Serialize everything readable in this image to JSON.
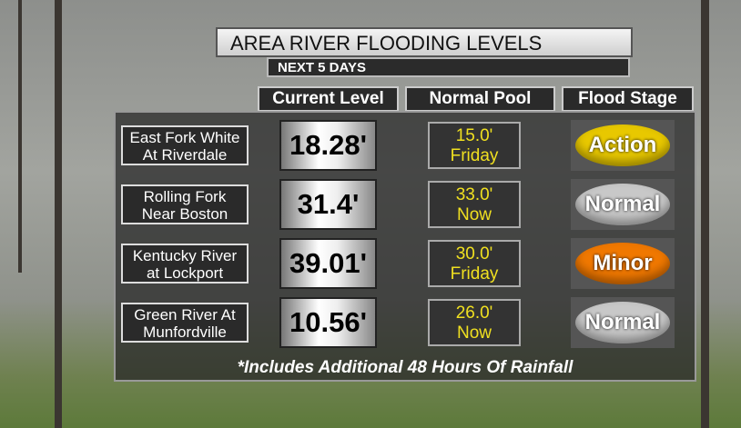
{
  "header": {
    "title": "AREA RIVER FLOODING LEVELS",
    "subtitle": "NEXT 5 DAYS"
  },
  "columns": [
    "Current Level",
    "Normal Pool",
    "Flood Stage"
  ],
  "rows": [
    {
      "station": [
        "East Fork White",
        "At Riverdale"
      ],
      "current": "18.28'",
      "normal_pool": [
        "15.0'",
        "Friday"
      ],
      "flood_stage": "Action",
      "stage_color": "#e8c800"
    },
    {
      "station": [
        "Rolling Fork",
        "Near Boston"
      ],
      "current": "31.4'",
      "normal_pool": [
        "33.0'",
        "Now"
      ],
      "flood_stage": "Normal",
      "stage_color": "#c8c8c8"
    },
    {
      "station": [
        "Kentucky River",
        "at Lockport"
      ],
      "current": "39.01'",
      "normal_pool": [
        "30.0'",
        "Friday"
      ],
      "flood_stage": "Minor",
      "stage_color": "#f07800"
    },
    {
      "station": [
        "Green River At",
        "Munfordville"
      ],
      "current": "10.56'",
      "normal_pool": [
        "26.0'",
        "Now"
      ],
      "flood_stage": "Normal",
      "stage_color": "#c8c8c8"
    }
  ],
  "footnote": "*Includes Additional 48 Hours Of Rainfall"
}
